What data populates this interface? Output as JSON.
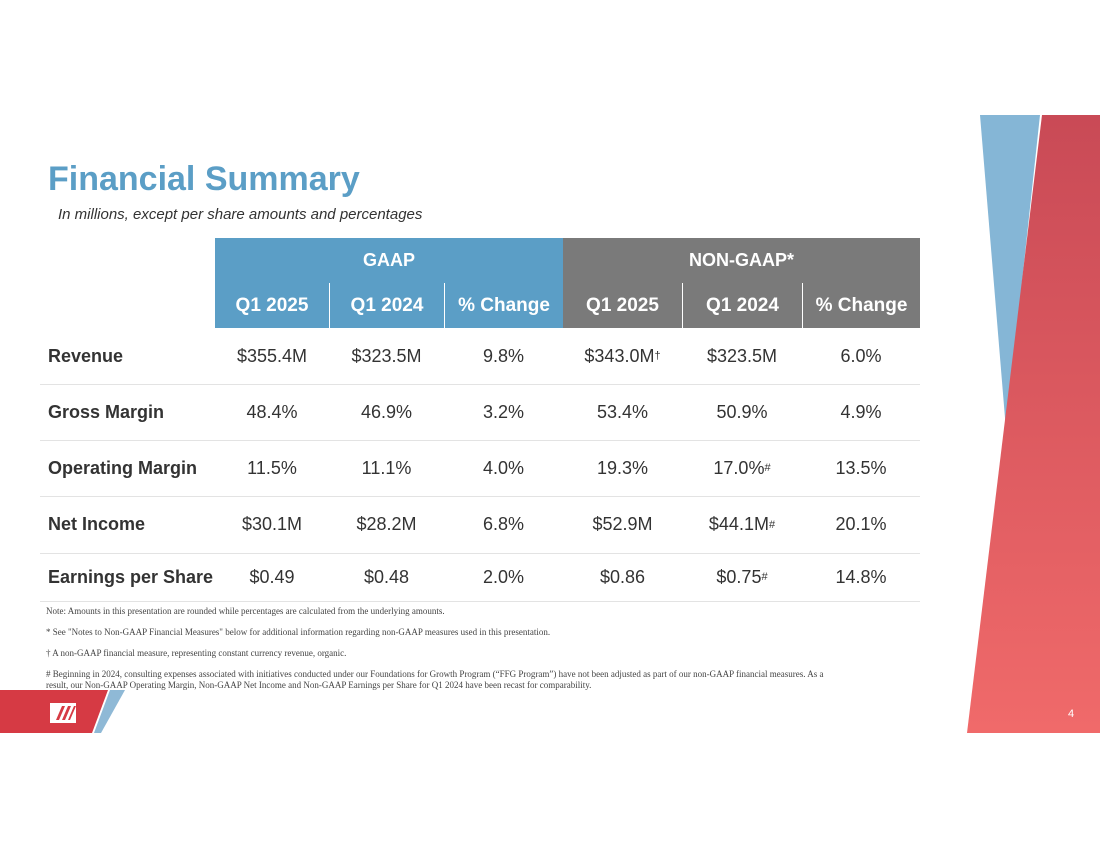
{
  "title": "Financial Summary",
  "subtitle": "In millions, except per share amounts and percentages",
  "table": {
    "groups": [
      "GAAP",
      "NON-GAAP*"
    ],
    "columns": [
      "Q1 2025",
      "Q1 2024",
      "% Change",
      "Q1 2025",
      "Q1 2024",
      "% Change"
    ],
    "rows": [
      {
        "label": "Revenue",
        "cells": [
          "$355.4M",
          "$323.5M",
          "9.8%",
          {
            "text": "$343.0M",
            "sup": "†"
          },
          "$323.5M",
          "6.0%"
        ]
      },
      {
        "label": "Gross Margin",
        "cells": [
          "48.4%",
          "46.9%",
          "3.2%",
          "53.4%",
          "50.9%",
          "4.9%"
        ]
      },
      {
        "label": "Operating Margin",
        "cells": [
          "11.5%",
          "11.1%",
          "4.0%",
          "19.3%",
          {
            "text": "17.0%",
            "sup": "#"
          },
          "13.5%"
        ]
      },
      {
        "label": "Net Income",
        "cells": [
          "$30.1M",
          "$28.2M",
          "6.8%",
          "$52.9M",
          {
            "text": "$44.1M",
            "sup": "#"
          },
          "20.1%"
        ]
      },
      {
        "label": "Earnings per Share",
        "cells": [
          "$0.49",
          "$0.48",
          "2.0%",
          "$0.86",
          {
            "text": "$0.75",
            "sup": "#"
          },
          "14.8%"
        ]
      }
    ]
  },
  "notes": [
    "Note: Amounts in this presentation are rounded while percentages are calculated from the underlying amounts.",
    "* See \"Notes to Non-GAAP Financial Measures\" below for additional information regarding non-GAAP measures used in this presentation.",
    "† A non-GAAP financial measure, representing constant currency revenue, organic.",
    "# Beginning in 2024, consulting expenses associated with initiatives conducted under our Foundations for Growth Program (“FFG Program”) have not been adjusted as part of our non-GAAP financial measures. As a result, our Non-GAAP Operating Margin, Non-GAAP Net Income and Non-GAAP Earnings per Share for Q1 2024 have been recast for comparability."
  ],
  "page_number": "4"
}
